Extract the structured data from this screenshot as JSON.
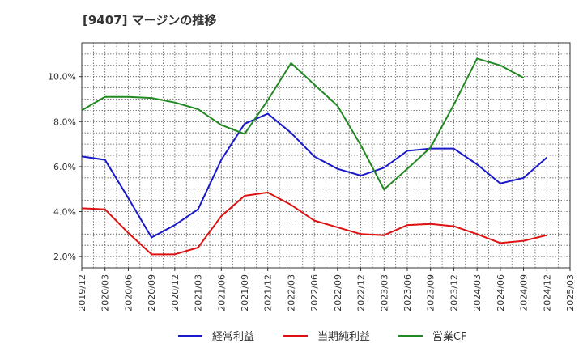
{
  "chart_data": {
    "type": "line",
    "title": "[9407]  マージンの推移",
    "x": [
      "2019/12",
      "2020/03",
      "2020/06",
      "2020/09",
      "2020/12",
      "2021/03",
      "2021/06",
      "2021/09",
      "2021/12",
      "2022/03",
      "2022/06",
      "2022/09",
      "2022/12",
      "2023/03",
      "2023/06",
      "2023/09",
      "2023/12",
      "2024/03",
      "2024/06",
      "2024/09",
      "2024/12",
      "2025/03"
    ],
    "ylim": [
      1.5,
      11.5
    ],
    "yticks": [
      2.0,
      4.0,
      6.0,
      8.0,
      10.0
    ],
    "ytick_labels": [
      "2.0%",
      "4.0%",
      "6.0%",
      "8.0%",
      "10.0%"
    ],
    "grid": true,
    "legend_position": "bottom",
    "series": [
      {
        "name": "経常利益",
        "color": "#1a1acc",
        "values": [
          6.45,
          6.3,
          4.6,
          2.85,
          3.4,
          4.1,
          6.3,
          7.9,
          8.35,
          7.5,
          6.45,
          5.9,
          5.6,
          5.95,
          6.7,
          6.8,
          6.8,
          6.1,
          5.25,
          5.5,
          6.4,
          null
        ]
      },
      {
        "name": "当期純利益",
        "color": "#dd1111",
        "values": [
          4.15,
          4.1,
          3.05,
          2.1,
          2.1,
          2.4,
          3.8,
          4.7,
          4.85,
          4.3,
          3.6,
          3.3,
          3.0,
          2.95,
          3.4,
          3.45,
          3.35,
          3.0,
          2.6,
          2.7,
          2.95,
          null
        ]
      },
      {
        "name": "営業CF",
        "color": "#228822",
        "values": [
          8.5,
          9.1,
          9.1,
          9.05,
          8.85,
          8.55,
          7.85,
          7.45,
          8.95,
          10.6,
          9.65,
          8.7,
          6.95,
          4.98,
          5.9,
          6.85,
          8.75,
          10.8,
          10.5,
          9.95,
          null,
          null
        ]
      }
    ]
  }
}
